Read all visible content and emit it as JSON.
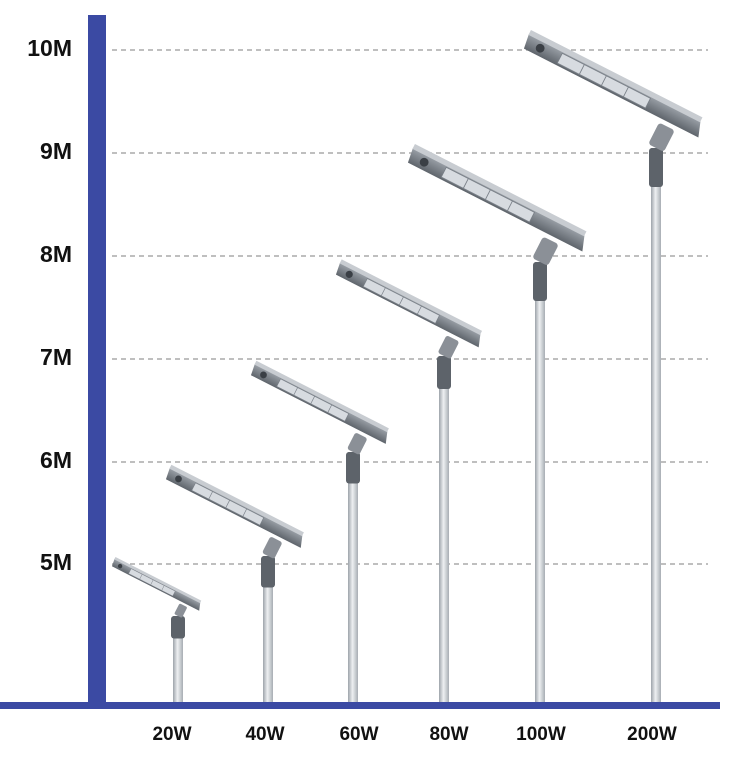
{
  "y_axis_labels": [
    "10M",
    "9M",
    "8M",
    "7M",
    "6M",
    "5M"
  ],
  "x_labels": [
    "20W",
    "40W",
    "60W",
    "80W",
    "100W",
    "200W"
  ]
}
